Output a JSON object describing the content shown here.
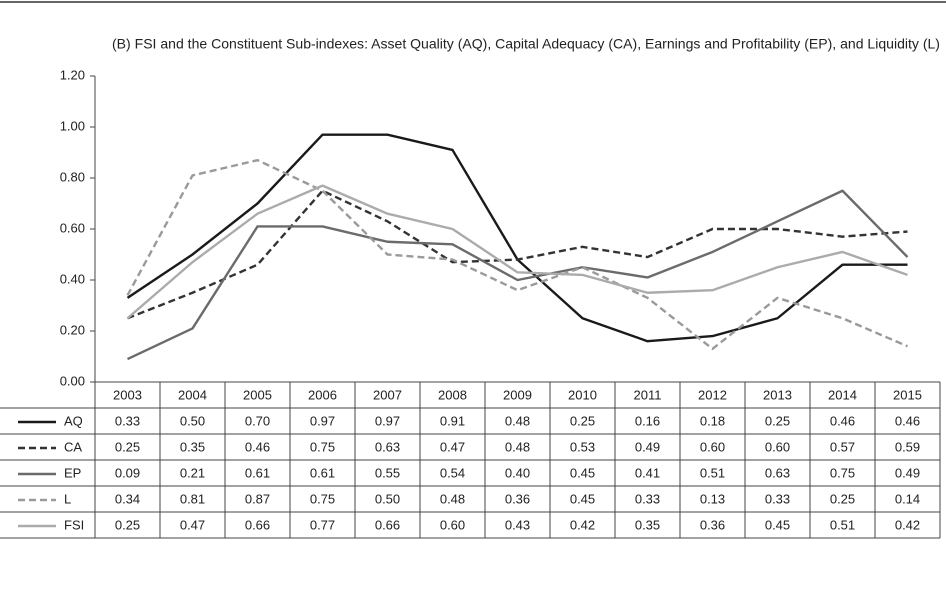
{
  "chart_data": {
    "type": "line",
    "title": "(B) FSI and the Constituent Sub-indexes: Asset Quality (AQ), Capital Adequacy (CA), Earnings and Profitability (EP), and Liquidity (L)",
    "categories": [
      "2003",
      "2004",
      "2005",
      "2006",
      "2007",
      "2008",
      "2009",
      "2010",
      "2011",
      "2012",
      "2013",
      "2014",
      "2015"
    ],
    "ylim": [
      0,
      1.2
    ],
    "yticks": [
      {
        "value": 0,
        "label": "0.00"
      },
      {
        "value": 0.2,
        "label": "0.20"
      },
      {
        "value": 0.4,
        "label": "0.40"
      },
      {
        "value": 0.6,
        "label": "0.60"
      },
      {
        "value": 0.8,
        "label": "0.80"
      },
      {
        "value": 1.0,
        "label": "1.00"
      },
      {
        "value": 1.2,
        "label": "1.20"
      }
    ],
    "grid": false,
    "series": [
      {
        "name": "AQ",
        "color": "#1a1a1a",
        "dash": false,
        "values": [
          0.33,
          0.5,
          0.7,
          0.97,
          0.97,
          0.91,
          0.48,
          0.25,
          0.16,
          0.18,
          0.25,
          0.46,
          0.46
        ],
        "value_labels": [
          "0.33",
          "0.50",
          "0.70",
          "0.97",
          "0.97",
          "0.91",
          "0.48",
          "0.25",
          "0.16",
          "0.18",
          "0.25",
          "0.46",
          "0.46"
        ]
      },
      {
        "name": "CA",
        "color": "#333333",
        "dash": true,
        "values": [
          0.25,
          0.35,
          0.46,
          0.75,
          0.63,
          0.47,
          0.48,
          0.53,
          0.49,
          0.6,
          0.6,
          0.57,
          0.59
        ],
        "value_labels": [
          "0.25",
          "0.35",
          "0.46",
          "0.75",
          "0.63",
          "0.47",
          "0.48",
          "0.53",
          "0.49",
          "0.60",
          "0.60",
          "0.57",
          "0.59"
        ]
      },
      {
        "name": "EP",
        "color": "#6b6b6b",
        "dash": false,
        "values": [
          0.09,
          0.21,
          0.61,
          0.61,
          0.55,
          0.54,
          0.4,
          0.45,
          0.41,
          0.51,
          0.63,
          0.75,
          0.49
        ],
        "value_labels": [
          "0.09",
          "0.21",
          "0.61",
          "0.61",
          "0.55",
          "0.54",
          "0.40",
          "0.45",
          "0.41",
          "0.51",
          "0.63",
          "0.75",
          "0.49"
        ]
      },
      {
        "name": "L",
        "color": "#9a9a9a",
        "dash": true,
        "values": [
          0.34,
          0.81,
          0.87,
          0.75,
          0.5,
          0.48,
          0.36,
          0.45,
          0.33,
          0.13,
          0.33,
          0.25,
          0.14
        ],
        "value_labels": [
          "0.34",
          "0.81",
          "0.87",
          "0.75",
          "0.50",
          "0.48",
          "0.36",
          "0.45",
          "0.33",
          "0.13",
          "0.33",
          "0.25",
          "0.14"
        ]
      },
      {
        "name": "FSI",
        "color": "#ababab",
        "dash": false,
        "values": [
          0.25,
          0.47,
          0.66,
          0.77,
          0.66,
          0.6,
          0.43,
          0.42,
          0.35,
          0.36,
          0.45,
          0.51,
          0.42
        ],
        "value_labels": [
          "0.25",
          "0.47",
          "0.66",
          "0.77",
          "0.66",
          "0.60",
          "0.43",
          "0.42",
          "0.35",
          "0.36",
          "0.45",
          "0.51",
          "0.42"
        ]
      }
    ]
  }
}
